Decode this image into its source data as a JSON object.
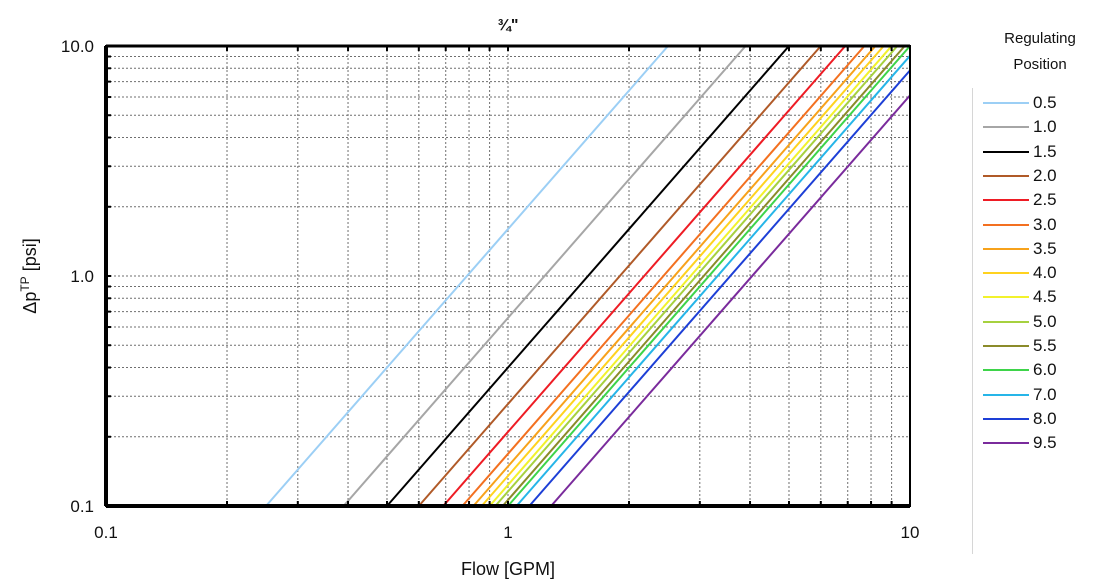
{
  "chart_data": {
    "type": "line",
    "title": "¾\"",
    "xlabel": "Flow [GPM]",
    "ylabel_main": "Δp",
    "ylabel_sup": "TP",
    "ylabel_unit": " [psi]",
    "xscale": "log",
    "yscale": "log",
    "xlim": [
      0.1,
      10
    ],
    "ylim": [
      0.1,
      10
    ],
    "xticks": [
      {
        "value": 0.1,
        "label": "0.1"
      },
      {
        "value": 1,
        "label": "1"
      },
      {
        "value": 10,
        "label": "10"
      }
    ],
    "yticks": [
      {
        "value": 0.1,
        "label": "0.1"
      },
      {
        "value": 1,
        "label": "1.0"
      },
      {
        "value": 10,
        "label": "10.0"
      }
    ],
    "grid": true,
    "legend": {
      "title_line1": "Regulating",
      "title_line2": "Position",
      "placement": "right"
    },
    "series": [
      {
        "name": "0.5",
        "color": "#9ccff5",
        "x": [
          0.25,
          2.5
        ],
        "y": [
          0.1,
          10
        ]
      },
      {
        "name": "1.0",
        "color": "#a6a6a6",
        "x": [
          0.39,
          3.9
        ],
        "y": [
          0.1,
          10
        ]
      },
      {
        "name": "1.5",
        "color": "#000000",
        "x": [
          0.5,
          5.0
        ],
        "y": [
          0.1,
          10
        ]
      },
      {
        "name": "2.0",
        "color": "#b05a28",
        "x": [
          0.6,
          6.0
        ],
        "y": [
          0.1,
          10
        ]
      },
      {
        "name": "2.5",
        "color": "#ee1c24",
        "x": [
          0.69,
          6.9
        ],
        "y": [
          0.1,
          10
        ]
      },
      {
        "name": "3.0",
        "color": "#f37020",
        "x": [
          0.77,
          7.7
        ],
        "y": [
          0.1,
          10
        ]
      },
      {
        "name": "3.5",
        "color": "#f7a21b",
        "x": [
          0.82,
          8.2
        ],
        "y": [
          0.1,
          10
        ]
      },
      {
        "name": "4.0",
        "color": "#ffd21f",
        "x": [
          0.86,
          8.6
        ],
        "y": [
          0.1,
          10
        ]
      },
      {
        "name": "4.5",
        "color": "#f2f22c",
        "x": [
          0.9,
          9.0
        ],
        "y": [
          0.1,
          10
        ]
      },
      {
        "name": "5.0",
        "color": "#a6d13f",
        "x": [
          0.93,
          9.3
        ],
        "y": [
          0.1,
          10
        ]
      },
      {
        "name": "5.5",
        "color": "#8b8b2a",
        "x": [
          0.97,
          9.7
        ],
        "y": [
          0.1,
          10
        ]
      },
      {
        "name": "6.0",
        "color": "#3ed44a",
        "x": [
          1.0,
          10.0
        ],
        "y": [
          0.1,
          10
        ]
      },
      {
        "name": "7.0",
        "color": "#26b5e8",
        "x": [
          1.05,
          10.0
        ],
        "y": [
          0.1,
          9.07
        ]
      },
      {
        "name": "8.0",
        "color": "#1d3fd6",
        "x": [
          1.13,
          10.0
        ],
        "y": [
          0.1,
          7.83
        ]
      },
      {
        "name": "9.5",
        "color": "#7a2b9c",
        "x": [
          1.28,
          10.0
        ],
        "y": [
          0.1,
          6.1
        ]
      }
    ]
  }
}
